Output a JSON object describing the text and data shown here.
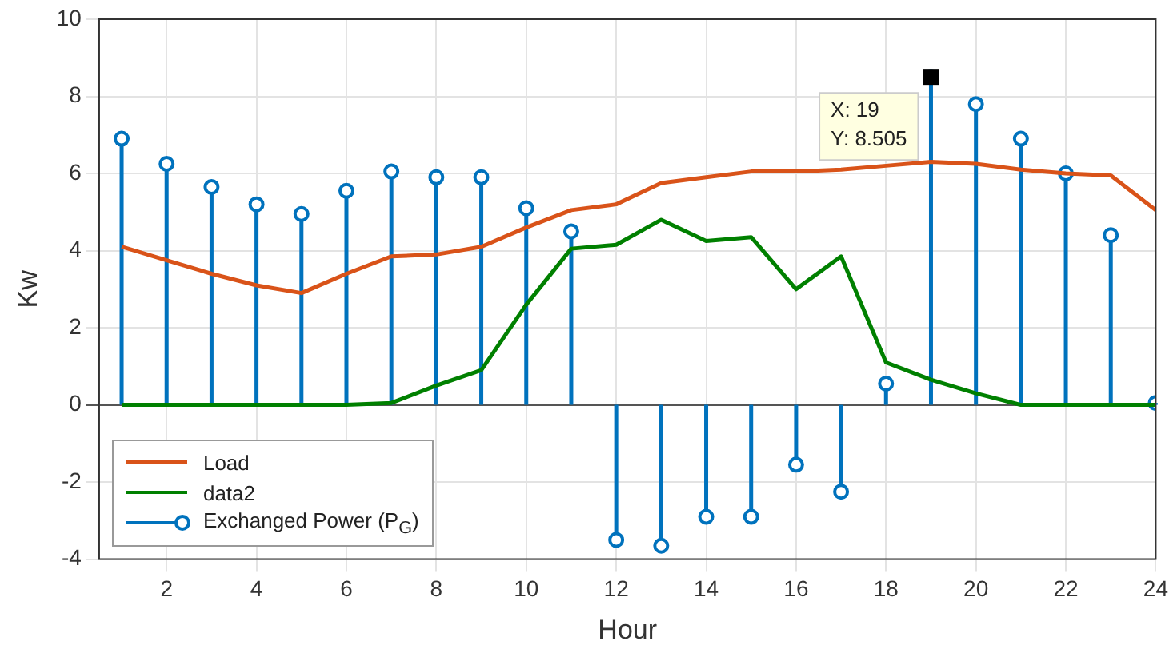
{
  "chart_data": {
    "type": "line",
    "xlabel": "Hour",
    "ylabel": "Kw",
    "x": [
      1,
      2,
      3,
      4,
      5,
      6,
      7,
      8,
      9,
      10,
      11,
      12,
      13,
      14,
      15,
      16,
      17,
      18,
      19,
      20,
      21,
      22,
      23,
      24
    ],
    "xlim": [
      0.5,
      24
    ],
    "xticks": [
      2,
      4,
      6,
      8,
      10,
      12,
      14,
      16,
      18,
      20,
      22,
      24
    ],
    "ylim": [
      -4,
      10
    ],
    "yticks": [
      -4,
      -2,
      0,
      2,
      4,
      6,
      8,
      10
    ],
    "grid": true,
    "legend": "bottom left",
    "series": [
      {
        "name": "Load",
        "color": "#d95319",
        "values": [
          4.1,
          3.75,
          3.4,
          3.1,
          2.9,
          3.4,
          3.85,
          3.9,
          4.1,
          4.6,
          5.05,
          5.2,
          5.75,
          5.9,
          6.05,
          6.05,
          6.1,
          6.2,
          6.3,
          6.25,
          6.1,
          6.0,
          5.95,
          5.05
        ]
      },
      {
        "name": "data2",
        "color": "#008000",
        "values": [
          0,
          0,
          0,
          0,
          0,
          0,
          0.05,
          0.5,
          0.9,
          2.6,
          4.05,
          4.15,
          4.8,
          4.25,
          4.35,
          3.0,
          3.85,
          1.1,
          0.65,
          0.3,
          0,
          0,
          0,
          0
        ]
      },
      {
        "name": "Exchanged Power (P$_{G}$)",
        "type": "lollipop",
        "marker": "circle",
        "color": "#0072bd",
        "values": [
          6.9,
          6.25,
          5.65,
          5.2,
          4.95,
          5.55,
          6.05,
          5.9,
          5.9,
          5.1,
          4.5,
          -3.5,
          -3.65,
          -2.9,
          -2.9,
          -1.55,
          -2.25,
          0.55,
          8.505,
          7.8,
          6.9,
          6.0,
          4.4,
          0.05
        ]
      }
    ],
    "annotations": [
      {
        "text": "X: 19\nY: 8.505",
        "x": 19,
        "y": 8.505
      }
    ]
  }
}
